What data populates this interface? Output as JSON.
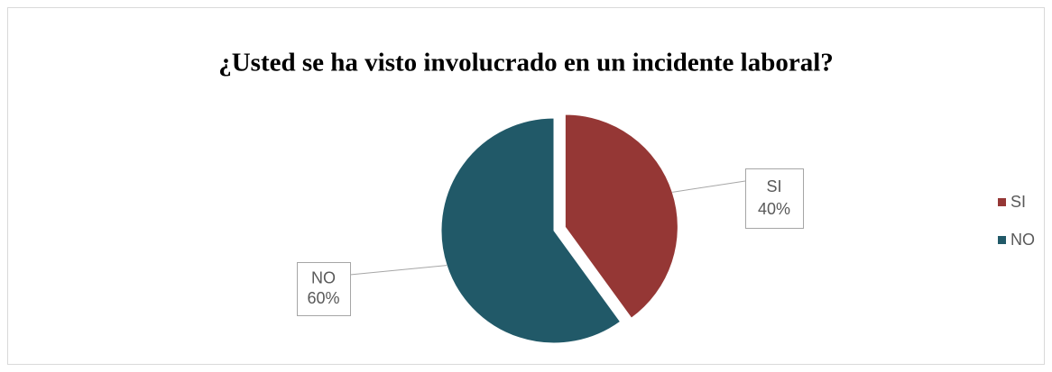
{
  "chart_data": {
    "type": "pie",
    "title": "¿Usted se ha visto involucrado en un incidente laboral?",
    "categories": [
      "SI",
      "NO"
    ],
    "values": [
      40,
      60
    ],
    "value_labels": [
      "40%",
      "60%"
    ],
    "colors": [
      "#953735",
      "#215968"
    ],
    "legend": "right"
  }
}
